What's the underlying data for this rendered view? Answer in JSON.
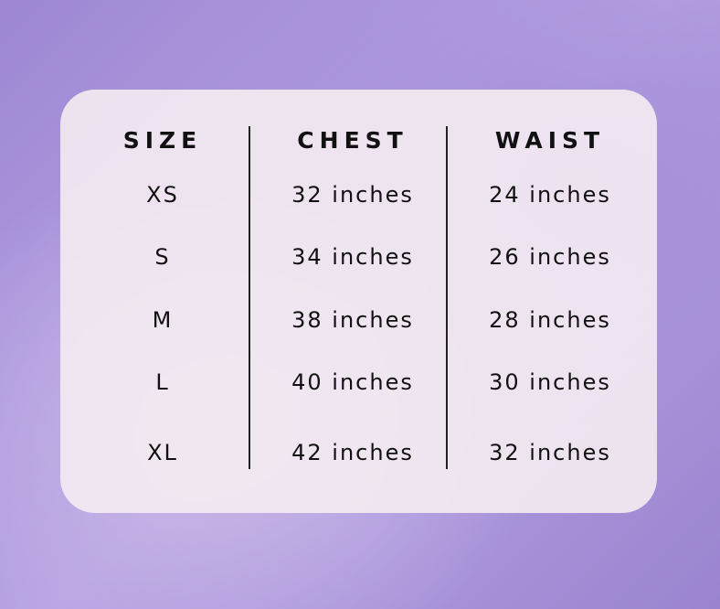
{
  "table": {
    "header": [
      "SIZE",
      "CHEST",
      "WAIST"
    ],
    "rows": [
      [
        "XS",
        "32 inches",
        "24 inches"
      ],
      [
        "S",
        "34 inches",
        "26 inches"
      ],
      [
        "M",
        "38 inches",
        "28 inches"
      ],
      [
        "L",
        "40 inches",
        "30 inches"
      ],
      [
        "XL",
        "42 inches",
        "32 inches"
      ]
    ]
  }
}
